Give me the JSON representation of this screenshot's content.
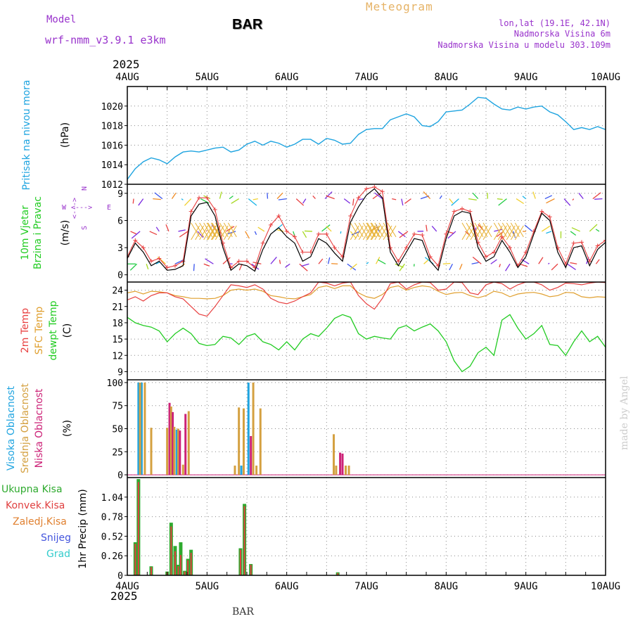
{
  "header": {
    "model_label": "Model",
    "model_name": "wrf-nmm_v3.9.1  e3km",
    "meteogram_title": "Meteogram",
    "station": "BAR",
    "lonlat": "lon,lat (19.1E, 42.1N)",
    "altitude": "Nadmorska Visina 6m",
    "model_altitude": "Nadmorska Visina u modelu 303.109m",
    "year": "2025"
  },
  "footer": {
    "station": "BAR",
    "credit": "made by Angel"
  },
  "colors": {
    "pressure": "#1fa4e0",
    "wind_speed": "#000000",
    "wind_marker": "#e84040",
    "temp_2m": "#e84040",
    "temp_sfc": "#e0a030",
    "dewpt": "#22cc22",
    "cloud_high": "#1fa4e0",
    "cloud_mid": "#d4a040",
    "cloud_low": "#cc2277",
    "precip_total": "#2eaa2e",
    "precip_conv": "#e04040",
    "precip_frz": "#e08030",
    "precip_snow": "#4455dd",
    "precip_grad": "#33cccc",
    "purple": "#9933cc"
  },
  "chart_data": [
    {
      "type": "line",
      "panel": "pressure",
      "ylabel_rot": [
        "Pritisak na nivou mora"
      ],
      "ylabel_unit": "(hPa)",
      "x_ticks": [
        "4AUG",
        "5AUG",
        "6AUG",
        "7AUG",
        "8AUG",
        "9AUG",
        "10AUG"
      ],
      "ylim": [
        1012,
        1022
      ],
      "yticks": [
        1012,
        1014,
        1016,
        1018,
        1020
      ],
      "x_days": [
        0,
        0.1,
        0.2,
        0.3,
        0.4,
        0.5,
        0.6,
        0.7,
        0.8,
        0.9,
        1.0,
        1.1,
        1.2,
        1.3,
        1.4,
        1.5,
        1.6,
        1.7,
        1.8,
        1.9,
        2.0,
        2.1,
        2.2,
        2.3,
        2.4,
        2.5,
        2.6,
        2.7,
        2.8,
        2.9,
        3.0,
        3.1,
        3.2,
        3.3,
        3.4,
        3.5,
        3.6,
        3.7,
        3.8,
        3.9,
        4.0,
        4.1,
        4.2,
        4.3,
        4.4,
        4.5,
        4.6,
        4.7,
        4.8,
        4.9,
        5.0,
        5.1,
        5.2,
        5.3,
        5.4,
        5.5,
        5.6,
        5.7,
        5.8,
        5.9,
        6.0
      ],
      "values": [
        1012.5,
        1013.6,
        1014.3,
        1014.7,
        1014.5,
        1014.1,
        1014.8,
        1015.3,
        1015.4,
        1015.3,
        1015.5,
        1015.7,
        1015.8,
        1015.3,
        1015.5,
        1016.1,
        1016.4,
        1016.0,
        1016.4,
        1016.2,
        1015.8,
        1016.1,
        1016.6,
        1016.6,
        1016.1,
        1016.7,
        1016.5,
        1016.1,
        1016.2,
        1017.1,
        1017.6,
        1017.7,
        1017.7,
        1018.6,
        1018.9,
        1019.2,
        1018.9,
        1018.0,
        1017.9,
        1018.4,
        1019.4,
        1019.5,
        1019.6,
        1020.2,
        1020.9,
        1020.8,
        1020.2,
        1019.7,
        1019.6,
        1019.9,
        1019.7,
        1019.9,
        1020.0,
        1019.4,
        1019.1,
        1018.4,
        1017.6,
        1017.8,
        1017.6,
        1017.9,
        1017.6
      ]
    },
    {
      "type": "line",
      "panel": "wind",
      "ylabel_rot": [
        "10m Vjetar",
        "Brzina i Pravac"
      ],
      "ylabel_unit": "(m/s)",
      "compass": {
        "n": "N",
        "s": "S",
        "w": "W",
        "e": "E",
        "arrow": "<--->"
      },
      "ylim": [
        -0.8,
        10
      ],
      "yticks": [
        0,
        3,
        6,
        9
      ],
      "x_days": [
        0,
        0.1,
        0.2,
        0.3,
        0.4,
        0.5,
        0.6,
        0.7,
        0.8,
        0.9,
        1.0,
        1.1,
        1.2,
        1.3,
        1.4,
        1.5,
        1.6,
        1.7,
        1.8,
        1.9,
        2.0,
        2.1,
        2.2,
        2.3,
        2.4,
        2.5,
        2.6,
        2.7,
        2.8,
        2.9,
        3.0,
        3.1,
        3.2,
        3.3,
        3.4,
        3.5,
        3.6,
        3.7,
        3.8,
        3.9,
        4.0,
        4.1,
        4.2,
        4.3,
        4.4,
        4.5,
        4.6,
        4.7,
        4.8,
        4.9,
        5.0,
        5.1,
        5.2,
        5.3,
        5.4,
        5.5,
        5.6,
        5.7,
        5.8,
        5.9,
        6.0
      ],
      "speed": [
        1.8,
        3.5,
        2.5,
        1.0,
        1.5,
        0.5,
        0.6,
        1.0,
        6.5,
        7.8,
        8.0,
        6.5,
        3.0,
        0.5,
        1.2,
        1.0,
        0.4,
        2.8,
        4.5,
        5.2,
        4.2,
        3.5,
        1.5,
        2.0,
        4.0,
        3.5,
        2.4,
        1.5,
        5.8,
        7.5,
        8.8,
        9.5,
        8.5,
        2.5,
        1.0,
        2.5,
        4.0,
        3.8,
        1.5,
        0.5,
        4.0,
        6.5,
        7.0,
        6.8,
        3.0,
        1.5,
        2.0,
        3.8,
        2.5,
        0.8,
        2.0,
        4.5,
        6.8,
        6.0,
        2.5,
        0.8,
        3.0,
        3.2,
        1.0,
        2.8,
        3.6
      ],
      "gust": [
        2.0,
        3.8,
        3.0,
        1.5,
        1.8,
        0.8,
        1.0,
        1.5,
        7.0,
        8.5,
        8.5,
        7.2,
        3.5,
        0.8,
        1.5,
        1.5,
        0.8,
        3.5,
        5.5,
        6.5,
        4.8,
        4.2,
        2.5,
        2.5,
        4.5,
        4.5,
        3.0,
        2.0,
        6.5,
        8.5,
        9.5,
        9.7,
        9.2,
        3.0,
        1.5,
        3.0,
        4.5,
        4.4,
        2.0,
        1.0,
        4.5,
        7.0,
        7.3,
        7.0,
        3.6,
        2.0,
        2.5,
        4.2,
        3.0,
        1.0,
        2.5,
        4.8,
        7.0,
        6.4,
        3.0,
        1.2,
        3.5,
        3.6,
        1.5,
        3.2,
        3.8
      ]
    },
    {
      "type": "line",
      "panel": "temperature",
      "ylabel_rot": [
        "2m Temp",
        "SFC Temp",
        "dewpt Temp"
      ],
      "ylabel_unit": "(C)",
      "ylim": [
        7.5,
        25.5
      ],
      "yticks": [
        9,
        12,
        15,
        18,
        21,
        24
      ],
      "x_days": [
        0,
        0.1,
        0.2,
        0.3,
        0.4,
        0.5,
        0.6,
        0.7,
        0.8,
        0.9,
        1.0,
        1.1,
        1.2,
        1.3,
        1.4,
        1.5,
        1.6,
        1.7,
        1.8,
        1.9,
        2.0,
        2.1,
        2.2,
        2.3,
        2.4,
        2.5,
        2.6,
        2.7,
        2.8,
        2.9,
        3.0,
        3.1,
        3.2,
        3.3,
        3.4,
        3.5,
        3.6,
        3.7,
        3.8,
        3.9,
        4.0,
        4.1,
        4.2,
        4.3,
        4.4,
        4.5,
        4.6,
        4.7,
        4.8,
        4.9,
        5.0,
        5.1,
        5.2,
        5.3,
        5.4,
        5.5,
        5.6,
        5.7,
        5.8,
        5.9,
        6.0
      ],
      "temp_2m": [
        22.2,
        22.8,
        22.0,
        23.0,
        23.5,
        23.5,
        22.8,
        22.4,
        21.0,
        19.6,
        19.2,
        21.0,
        23.0,
        25.0,
        24.8,
        24.5,
        25.0,
        24.2,
        22.5,
        21.8,
        21.5,
        22.0,
        22.8,
        23.5,
        25.5,
        25.3,
        24.8,
        25.3,
        25.5,
        23.0,
        21.5,
        20.5,
        22.5,
        25.2,
        25.5,
        24.2,
        25.0,
        25.5,
        25.4,
        24.0,
        24.2,
        25.5,
        25.4,
        23.5,
        23.2,
        25.0,
        25.5,
        25.2,
        24.2,
        25.0,
        25.5,
        25.5,
        25.0,
        24.0,
        24.5,
        25.3,
        25.2,
        25.0,
        25.3,
        25.5,
        25.4
      ],
      "temp_sfc": [
        23.5,
        23.8,
        23.3,
        23.8,
        23.7,
        23.5,
        23.0,
        22.8,
        22.5,
        22.5,
        22.4,
        22.5,
        23.0,
        24.0,
        24.2,
        24.0,
        24.2,
        23.8,
        23.0,
        22.8,
        22.5,
        22.4,
        22.8,
        23.2,
        24.5,
        24.8,
        24.3,
        24.8,
        24.8,
        23.5,
        22.8,
        22.5,
        23.2,
        24.5,
        24.8,
        24.0,
        24.5,
        24.8,
        24.6,
        23.8,
        23.2,
        23.5,
        23.6,
        23.0,
        22.6,
        23.0,
        23.8,
        23.5,
        22.8,
        23.3,
        23.5,
        23.6,
        23.3,
        22.8,
        23.0,
        23.6,
        23.5,
        22.8,
        22.6,
        22.8,
        22.7
      ],
      "dewpt": [
        19.0,
        18.0,
        17.5,
        17.2,
        16.5,
        14.5,
        16.0,
        17.0,
        16.0,
        14.2,
        13.8,
        14.0,
        15.5,
        15.2,
        14.0,
        15.5,
        16.0,
        14.5,
        14.0,
        13.0,
        14.5,
        13.0,
        15.0,
        16.0,
        15.5,
        17.0,
        18.8,
        19.5,
        19.0,
        16.0,
        15.0,
        15.5,
        15.2,
        15.0,
        17.0,
        17.5,
        16.5,
        17.2,
        17.8,
        16.5,
        14.5,
        11.0,
        9.0,
        10.0,
        12.5,
        13.5,
        12.0,
        18.5,
        19.5,
        17.0,
        15.0,
        16.0,
        17.5,
        14.0,
        13.8,
        12.0,
        14.5,
        16.5,
        14.5,
        15.5,
        13.5
      ]
    },
    {
      "type": "bar",
      "panel": "cloud",
      "ylabel_rot": [
        "Visoka Oblacnost",
        "Srednja Oblacnost",
        "Niska Oblacnost"
      ],
      "ylabel_unit": "(%)",
      "ylim": [
        -3,
        103
      ],
      "yticks": [
        0,
        25,
        50,
        75,
        100
      ],
      "bars": [
        {
          "series": "high",
          "x": 0.14,
          "v": 100
        },
        {
          "series": "high",
          "x": 0.18,
          "v": 100
        },
        {
          "series": "mid",
          "x": 0.16,
          "v": 100
        },
        {
          "series": "mid",
          "x": 0.22,
          "v": 100
        },
        {
          "series": "mid",
          "x": 0.3,
          "v": 51
        },
        {
          "series": "mid",
          "x": 0.5,
          "v": 51
        },
        {
          "series": "low",
          "x": 0.53,
          "v": 78
        },
        {
          "series": "mid",
          "x": 0.55,
          "v": 74
        },
        {
          "series": "low",
          "x": 0.57,
          "v": 68
        },
        {
          "series": "mid",
          "x": 0.59,
          "v": 52
        },
        {
          "series": "high",
          "x": 0.62,
          "v": 49
        },
        {
          "series": "mid",
          "x": 0.64,
          "v": 50
        },
        {
          "series": "low",
          "x": 0.66,
          "v": 48
        },
        {
          "series": "mid",
          "x": 0.7,
          "v": 11
        },
        {
          "series": "low",
          "x": 0.73,
          "v": 66
        },
        {
          "series": "mid",
          "x": 0.77,
          "v": 69
        },
        {
          "series": "mid",
          "x": 1.35,
          "v": 10
        },
        {
          "series": "mid",
          "x": 1.4,
          "v": 73
        },
        {
          "series": "high",
          "x": 1.43,
          "v": 10
        },
        {
          "series": "mid",
          "x": 1.46,
          "v": 72
        },
        {
          "series": "high",
          "x": 1.52,
          "v": 100
        },
        {
          "series": "low",
          "x": 1.55,
          "v": 42
        },
        {
          "series": "mid",
          "x": 1.58,
          "v": 100
        },
        {
          "series": "mid",
          "x": 1.62,
          "v": 10
        },
        {
          "series": "mid",
          "x": 1.67,
          "v": 72
        },
        {
          "series": "mid",
          "x": 2.59,
          "v": 44
        },
        {
          "series": "mid",
          "x": 2.62,
          "v": 10
        },
        {
          "series": "low",
          "x": 2.67,
          "v": 24
        },
        {
          "series": "low",
          "x": 2.7,
          "v": 23
        },
        {
          "series": "mid",
          "x": 2.74,
          "v": 10
        },
        {
          "series": "mid",
          "x": 2.78,
          "v": 10
        }
      ]
    },
    {
      "type": "bar",
      "panel": "precip",
      "legend": [
        "Ukupna Kisa",
        "Konvek.Kisa",
        "Zaledj.Kisa",
        "Snijeg",
        "Grad"
      ],
      "ylabel_unit": "1hr Precip (mm)",
      "ylim": [
        0,
        1.3
      ],
      "yticks": [
        0,
        0.26,
        0.52,
        0.78,
        1.04
      ],
      "bars": [
        {
          "x": 0.1,
          "total": 0.44,
          "conv": 0.42
        },
        {
          "x": 0.14,
          "total": 1.28,
          "conv": 1.24
        },
        {
          "x": 0.3,
          "total": 0.12,
          "conv": 0.11
        },
        {
          "x": 0.5,
          "total": 0.05,
          "conv": 0.04
        },
        {
          "x": 0.55,
          "total": 0.7,
          "conv": 0.65
        },
        {
          "x": 0.6,
          "total": 0.39,
          "conv": 0.32
        },
        {
          "x": 0.64,
          "total": 0.14,
          "conv": 0.12
        },
        {
          "x": 0.67,
          "total": 0.44,
          "conv": 0.27
        },
        {
          "x": 0.72,
          "total": 0.06,
          "conv": 0.05
        },
        {
          "x": 0.76,
          "total": 0.22,
          "conv": 0.2
        },
        {
          "x": 0.8,
          "total": 0.34,
          "conv": 0.3
        },
        {
          "x": 1.42,
          "total": 0.36,
          "conv": 0.34
        },
        {
          "x": 1.47,
          "total": 0.95,
          "conv": 0.92
        },
        {
          "x": 1.55,
          "total": 0.15,
          "conv": 0.14
        },
        {
          "x": 2.64,
          "total": 0.04,
          "conv": 0.03
        }
      ]
    }
  ]
}
